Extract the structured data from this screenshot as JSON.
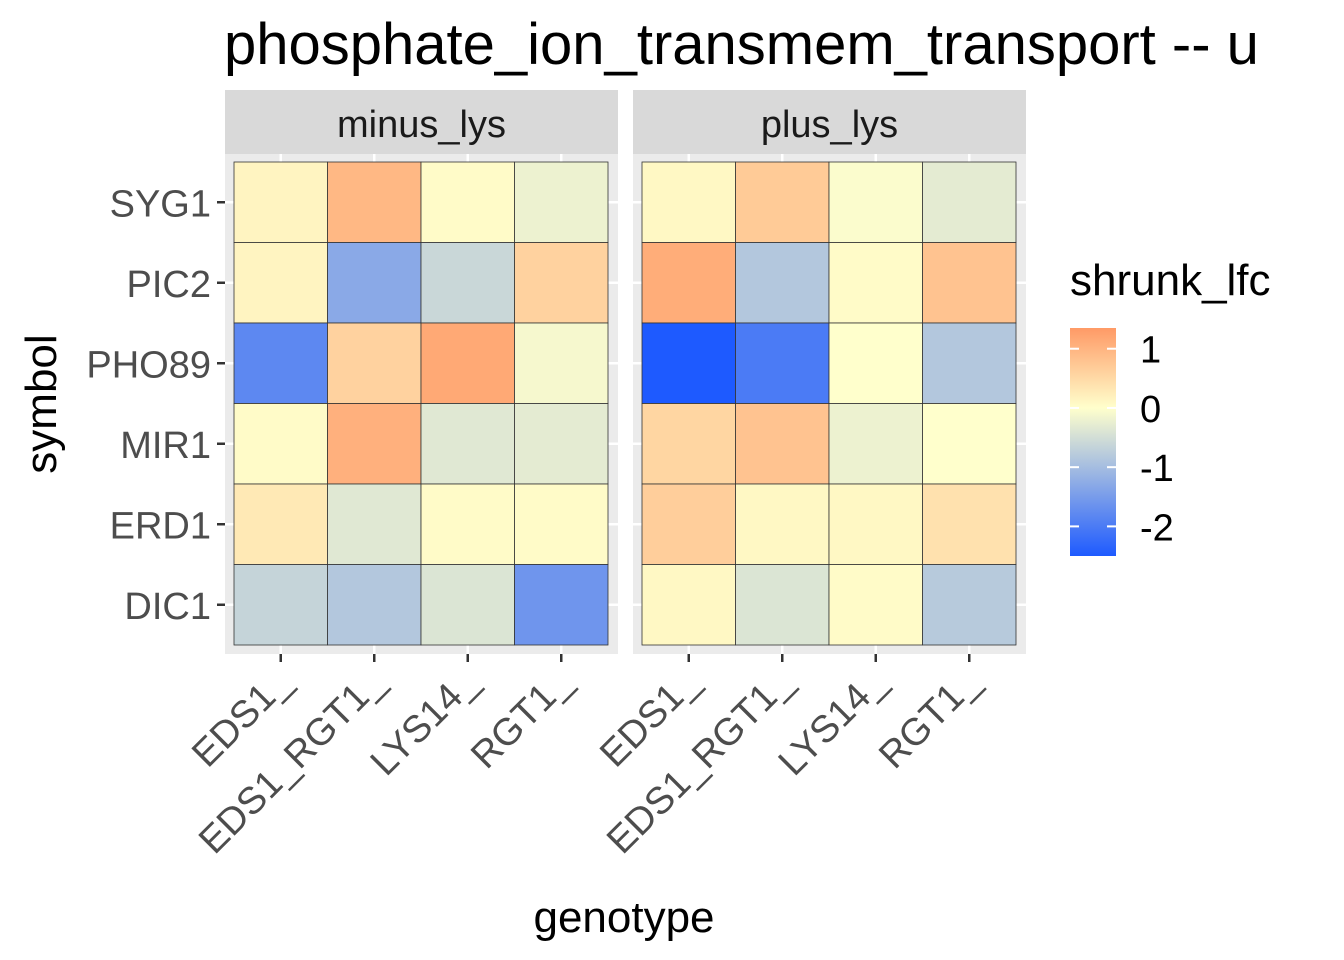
{
  "chart_data": {
    "type": "heatmap",
    "title": "phosphate_ion_transmem_transport -- u",
    "xlabel": "genotype",
    "ylabel": "symbol",
    "facets": [
      "minus_lys",
      "plus_lys"
    ],
    "x_categories": [
      "EDS1_",
      "EDS1_RGT1_",
      "LYS14_",
      "RGT1_"
    ],
    "y_categories": [
      "SYG1",
      "PIC2",
      "PHO89",
      "MIR1",
      "ERD1",
      "DIC1"
    ],
    "values": {
      "minus_lys": [
        [
          0.15,
          0.95,
          0.05,
          -0.2
        ],
        [
          0.15,
          -1.3,
          -0.6,
          0.6
        ],
        [
          -1.8,
          0.6,
          1.15,
          -0.1
        ],
        [
          0.05,
          1.05,
          -0.35,
          -0.3
        ],
        [
          0.3,
          -0.35,
          0.05,
          0.05
        ],
        [
          -0.65,
          -0.85,
          -0.4,
          -1.6
        ]
      ],
      "plus_lys": [
        [
          0.1,
          0.7,
          -0.05,
          -0.3
        ],
        [
          1.1,
          -0.85,
          0.05,
          0.8
        ],
        [
          -2.5,
          -2.0,
          0.0,
          -0.85
        ],
        [
          0.55,
          0.8,
          -0.2,
          0.0
        ],
        [
          0.65,
          0.1,
          0.1,
          0.4
        ],
        [
          0.1,
          -0.4,
          0.05,
          -0.8
        ]
      ]
    },
    "legend": {
      "title": "shrunk_lfc",
      "breaks": [
        "1",
        "0",
        "-1",
        "-2"
      ],
      "break_values": [
        1,
        0,
        -1,
        -2
      ],
      "range": [
        -2.5,
        1.35
      ],
      "position": "right"
    },
    "colors": {
      "low": "#1e5aff",
      "mid": "#ffffcc",
      "high": "#ff9a66",
      "panel_bg": "#ebebeb",
      "strip_bg": "#d9d9d9"
    },
    "grid": true
  }
}
